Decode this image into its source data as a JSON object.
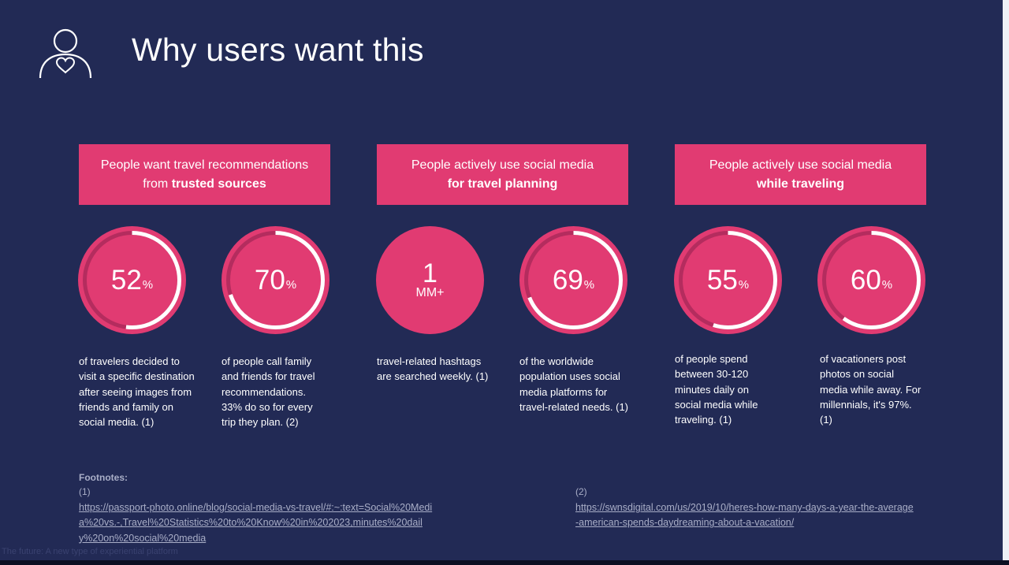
{
  "title": "Why users want this",
  "banners": [
    {
      "line1": "People want travel recommendations",
      "line2_prefix": "from ",
      "line2_bold": "trusted sources"
    },
    {
      "line1": "People actively use social media",
      "line2_prefix": "",
      "line2_bold": "for travel planning"
    },
    {
      "line1": "People actively use social media",
      "line2_prefix": "",
      "line2_bold": "while traveling"
    }
  ],
  "stats": [
    {
      "value": "52",
      "unit": "%",
      "fraction": 0.52,
      "description": "of travelers decided to visit a specific destination after seeing images from friends and family on social media. (1)"
    },
    {
      "value": "70",
      "unit": "%",
      "fraction": 0.7,
      "description": "of people call family and friends for travel recommendations. 33% do so for every trip they plan. (2)"
    },
    {
      "value": "1",
      "unit": "MM+",
      "description": "travel-related hashtags are searched weekly. (1)"
    },
    {
      "value": "69",
      "unit": "%",
      "fraction": 0.69,
      "description": "of the worldwide population uses social media platforms for travel-related needs. (1)"
    },
    {
      "value": "55",
      "unit": "%",
      "fraction": 0.55,
      "description": "of people spend between 30-120 minutes daily on social media while traveling. (1)"
    },
    {
      "value": "60",
      "unit": "%",
      "fraction": 0.6,
      "description": "of vacationers post photos on social media while away. For millennials, it's 97%. (1)"
    }
  ],
  "footnotes": {
    "title": "Footnotes:",
    "items": [
      {
        "number": "(1)",
        "link": "https://passport-photo.online/blog/social-media-vs-travel/#:~:text=Social%20Media%20vs.-,Travel%20Statistics%20to%20Know%20in%202023,minutes%20daily%20on%20social%20media"
      },
      {
        "number": "(2)",
        "link": "https://swnsdigital.com/us/2019/10/heres-how-many-days-a-year-the-average-american-spends-daydreaming-about-a-vacation/"
      }
    ]
  },
  "caption": "The future: A new type of experiential platform",
  "colors": {
    "background": "#222a55",
    "accent": "#e13b72",
    "ring_track": "#b42c5e",
    "ring_progress": "#ffffff",
    "footnote_text": "#a9aec7"
  },
  "icons": {
    "header": "user-heart-icon"
  }
}
